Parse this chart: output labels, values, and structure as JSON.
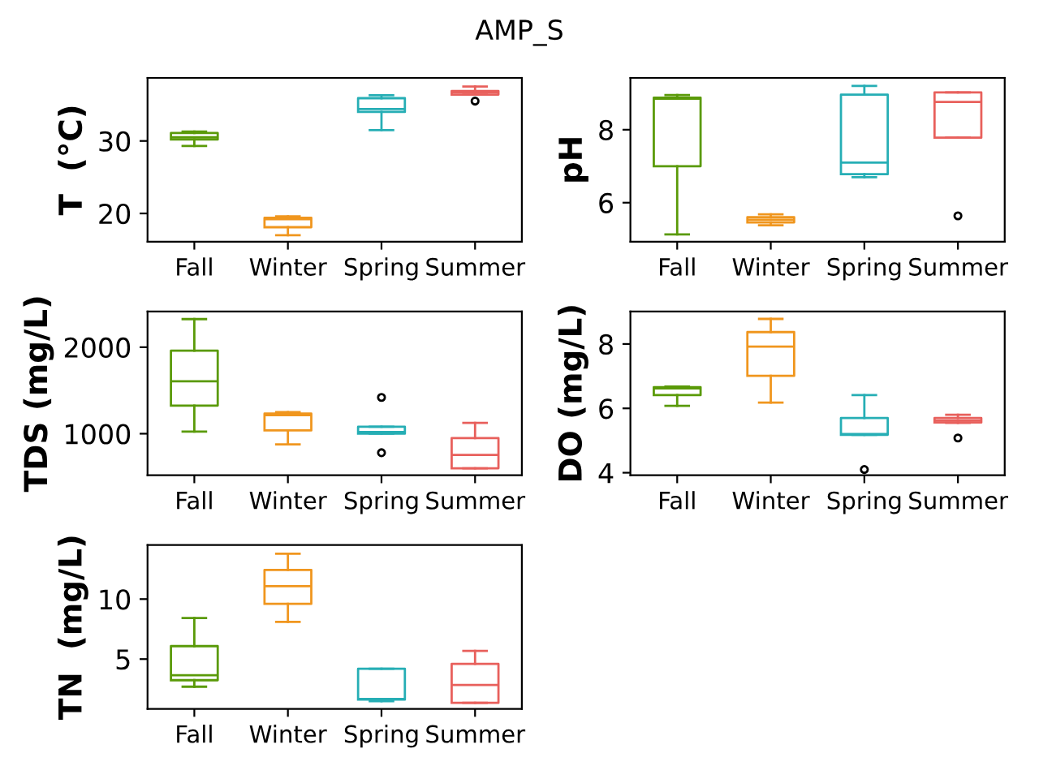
{
  "chart_data": [
    {
      "type": "box",
      "title": "AMP_S",
      "ylabel": "T  (°C)",
      "categories": [
        "Fall",
        "Winter",
        "Spring",
        "Summer"
      ],
      "colors": [
        "#5a9a08",
        "#f0961e",
        "#26aeb5",
        "#e8605c"
      ],
      "boxes": [
        {
          "low": 29.3,
          "q1": 30.2,
          "median": 30.5,
          "q3": 31.1,
          "high": 31.3
        },
        {
          "low": 17.0,
          "q1": 18.1,
          "median": 19.2,
          "q3": 19.4,
          "high": 19.6
        },
        {
          "low": 31.5,
          "q1": 34.0,
          "median": 34.4,
          "q3": 35.9,
          "high": 36.3
        },
        {
          "low": 36.4,
          "q1": 36.4,
          "median": 36.7,
          "q3": 36.9,
          "high": 37.5,
          "outliers": [
            35.5
          ]
        }
      ],
      "ylim": [
        16.1,
        38.7
      ],
      "yticks": [
        20,
        30
      ],
      "grid": false
    },
    {
      "type": "box",
      "ylabel": "pH",
      "categories": [
        "Fall",
        "Winter",
        "Spring",
        "Summer"
      ],
      "colors": [
        "#5a9a08",
        "#f0961e",
        "#26aeb5",
        "#e8605c"
      ],
      "boxes": [
        {
          "low": 5.13,
          "q1": 7.0,
          "median": 8.85,
          "q3": 8.88,
          "high": 8.95
        },
        {
          "low": 5.38,
          "q1": 5.46,
          "median": 5.53,
          "q3": 5.6,
          "high": 5.68
        },
        {
          "low": 6.7,
          "q1": 6.78,
          "median": 7.1,
          "q3": 8.96,
          "high": 9.2
        },
        {
          "low": 7.78,
          "q1": 7.78,
          "median": 8.76,
          "q3": 9.02,
          "high": 9.02,
          "outliers": [
            5.64
          ]
        }
      ],
      "ylim": [
        4.93,
        9.42
      ],
      "yticks": [
        6,
        8
      ],
      "grid": false
    },
    {
      "type": "box",
      "ylabel": "TDS (mg/L)",
      "categories": [
        "Fall",
        "Winter",
        "Spring",
        "Summer"
      ],
      "colors": [
        "#5a9a08",
        "#f0961e",
        "#26aeb5",
        "#e8605c"
      ],
      "boxes": [
        {
          "low": 1025,
          "q1": 1325,
          "median": 1605,
          "q3": 1960,
          "high": 2325
        },
        {
          "low": 876,
          "q1": 1038,
          "median": 1215,
          "q3": 1232,
          "high": 1250
        },
        {
          "low": 1000,
          "q1": 1000,
          "median": 1020,
          "q3": 1080,
          "high": 1080,
          "outliers": [
            1420,
            780
          ]
        },
        {
          "low": 600,
          "q1": 600,
          "median": 755,
          "q3": 950,
          "high": 1125
        }
      ],
      "ylim": [
        519,
        2413
      ],
      "yticks": [
        1000,
        2000
      ],
      "grid": false
    },
    {
      "type": "box",
      "ylabel": "DO (mg/L)",
      "categories": [
        "Fall",
        "Winter",
        "Spring",
        "Summer"
      ],
      "colors": [
        "#5a9a08",
        "#f0961e",
        "#26aeb5",
        "#e8605c"
      ],
      "boxes": [
        {
          "low": 6.08,
          "q1": 6.41,
          "median": 6.62,
          "q3": 6.66,
          "high": 6.68
        },
        {
          "low": 6.18,
          "q1": 7.01,
          "median": 7.92,
          "q3": 8.37,
          "high": 8.78
        },
        {
          "low": 5.18,
          "q1": 5.18,
          "median": 5.2,
          "q3": 5.7,
          "high": 6.41,
          "outliers": [
            4.1
          ]
        },
        {
          "low": 5.55,
          "q1": 5.56,
          "median": 5.62,
          "q3": 5.7,
          "high": 5.8,
          "outliers": [
            5.08
          ]
        }
      ],
      "ylim": [
        3.92,
        9.01
      ],
      "yticks": [
        4,
        6,
        8
      ],
      "grid": false
    },
    {
      "type": "box",
      "ylabel": "TN  (mg/L)",
      "categories": [
        "Fall",
        "Winter",
        "Spring",
        "Summer"
      ],
      "colors": [
        "#5a9a08",
        "#f0961e",
        "#26aeb5",
        "#e8605c"
      ],
      "boxes": [
        {
          "low": 2.7,
          "q1": 3.24,
          "median": 3.65,
          "q3": 6.08,
          "high": 8.42
        },
        {
          "low": 8.1,
          "q1": 9.6,
          "median": 11.08,
          "q3": 12.43,
          "high": 13.78
        },
        {
          "low": 1.49,
          "q1": 1.62,
          "median": 1.68,
          "q3": 4.19,
          "high": 4.19
        },
        {
          "low": 1.35,
          "q1": 1.35,
          "median": 2.84,
          "q3": 4.6,
          "high": 5.68
        }
      ],
      "ylim": [
        0.85,
        14.5
      ],
      "yticks": [
        5,
        10
      ],
      "grid": false
    }
  ]
}
